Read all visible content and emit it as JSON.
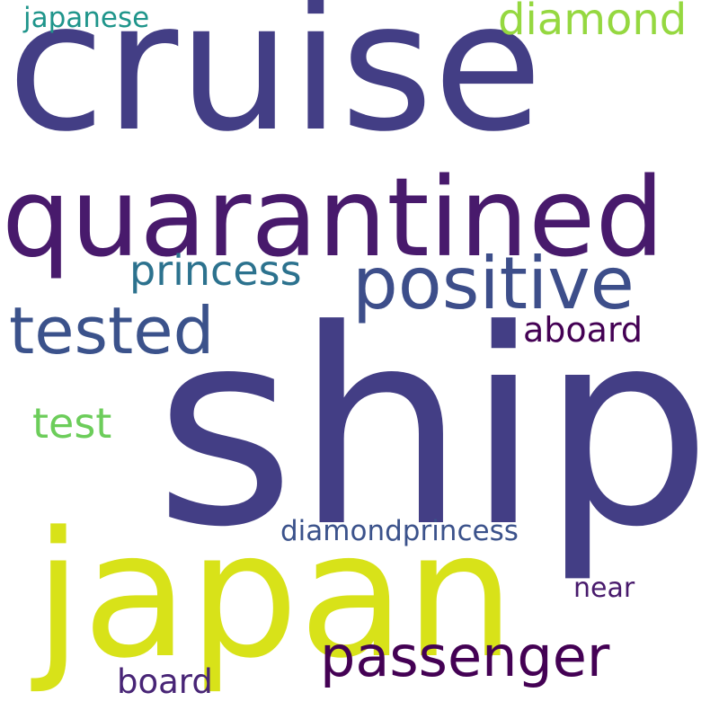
{
  "words": {
    "cruise": {
      "text": "cruise",
      "color": "#433e85"
    },
    "quarantined": {
      "text": "quarantined",
      "color": "#481a6c"
    },
    "ship": {
      "text": "ship",
      "color": "#433e85"
    },
    "japan": {
      "text": "japan",
      "color": "#d8e219"
    },
    "positive": {
      "text": "positive",
      "color": "#3d4e8a"
    },
    "tested": {
      "text": "tested",
      "color": "#3b528b"
    },
    "passenger": {
      "text": "passenger",
      "color": "#440154"
    },
    "diamond": {
      "text": "diamond",
      "color": "#95d840"
    },
    "princess": {
      "text": "princess",
      "color": "#2c728e"
    },
    "test": {
      "text": "test",
      "color": "#6ccd5a"
    },
    "aboard": {
      "text": "aboard",
      "color": "#440154"
    },
    "japanese": {
      "text": "japanese",
      "color": "#1f958b"
    },
    "diamondprincess": {
      "text": "diamondprincess",
      "color": "#3b528b"
    },
    "near": {
      "text": "near",
      "color": "#481a6c"
    },
    "board": {
      "text": "board",
      "color": "#482576"
    }
  }
}
